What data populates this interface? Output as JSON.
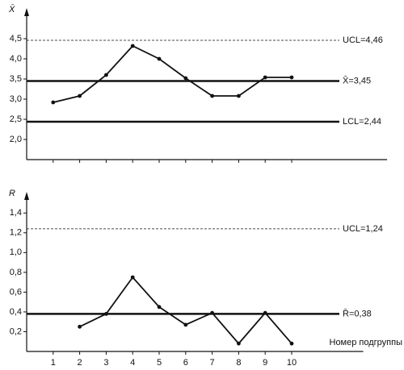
{
  "chart_data": [
    {
      "type": "line",
      "y_label": "X̄",
      "x": [
        1,
        2,
        3,
        4,
        5,
        6,
        7,
        8,
        9,
        10
      ],
      "xlim": [
        0,
        13.6
      ],
      "series": [
        {
          "color": "#111111",
          "values": [
            2.92,
            3.08,
            3.6,
            4.32,
            4.0,
            3.52,
            3.08,
            3.08,
            3.54,
            3.54
          ]
        }
      ],
      "ylim": [
        1.5,
        4.9
      ],
      "yticks": [
        {
          "value": 2.0,
          "label": "2,0"
        },
        {
          "value": 2.5,
          "label": "2,5"
        },
        {
          "value": 3.0,
          "label": "3,0"
        },
        {
          "value": 3.5,
          "label": "3,5"
        },
        {
          "value": 4.0,
          "label": "4,0"
        },
        {
          "value": 4.5,
          "label": "4,5"
        }
      ],
      "control_lines": [
        {
          "label": "UCL=4,46",
          "value": 4.46,
          "style": "dashed"
        },
        {
          "label": "X̄=3,45",
          "value": 3.45,
          "style": "solid"
        },
        {
          "label": "LCL=2,44",
          "value": 2.44,
          "style": "solid"
        }
      ]
    },
    {
      "type": "line",
      "y_label": "R",
      "x_label": "Номер подгруппы",
      "x": [
        1,
        2,
        3,
        4,
        5,
        6,
        7,
        8,
        9,
        10
      ],
      "xlim": [
        0,
        12.7
      ],
      "xticks": [
        1,
        2,
        3,
        4,
        5,
        6,
        7,
        8,
        9,
        10
      ],
      "series": [
        {
          "color": "#111111",
          "values": [
            null,
            0.25,
            0.38,
            0.75,
            0.45,
            0.27,
            0.39,
            0.08,
            0.39,
            0.08
          ]
        }
      ],
      "ylim": [
        0,
        1.5
      ],
      "yticks": [
        {
          "value": 0.2,
          "label": "0,2"
        },
        {
          "value": 0.4,
          "label": "0,4"
        },
        {
          "value": 0.6,
          "label": "0,6"
        },
        {
          "value": 0.8,
          "label": "0,8"
        },
        {
          "value": 1.0,
          "label": "1,0"
        },
        {
          "value": 1.2,
          "label": "1,2"
        },
        {
          "value": 1.4,
          "label": "1,4"
        }
      ],
      "control_lines": [
        {
          "label": "UCL=1,24",
          "value": 1.24,
          "style": "dashed"
        },
        {
          "label": "R̄=0,38",
          "value": 0.38,
          "style": "solid"
        }
      ]
    }
  ]
}
